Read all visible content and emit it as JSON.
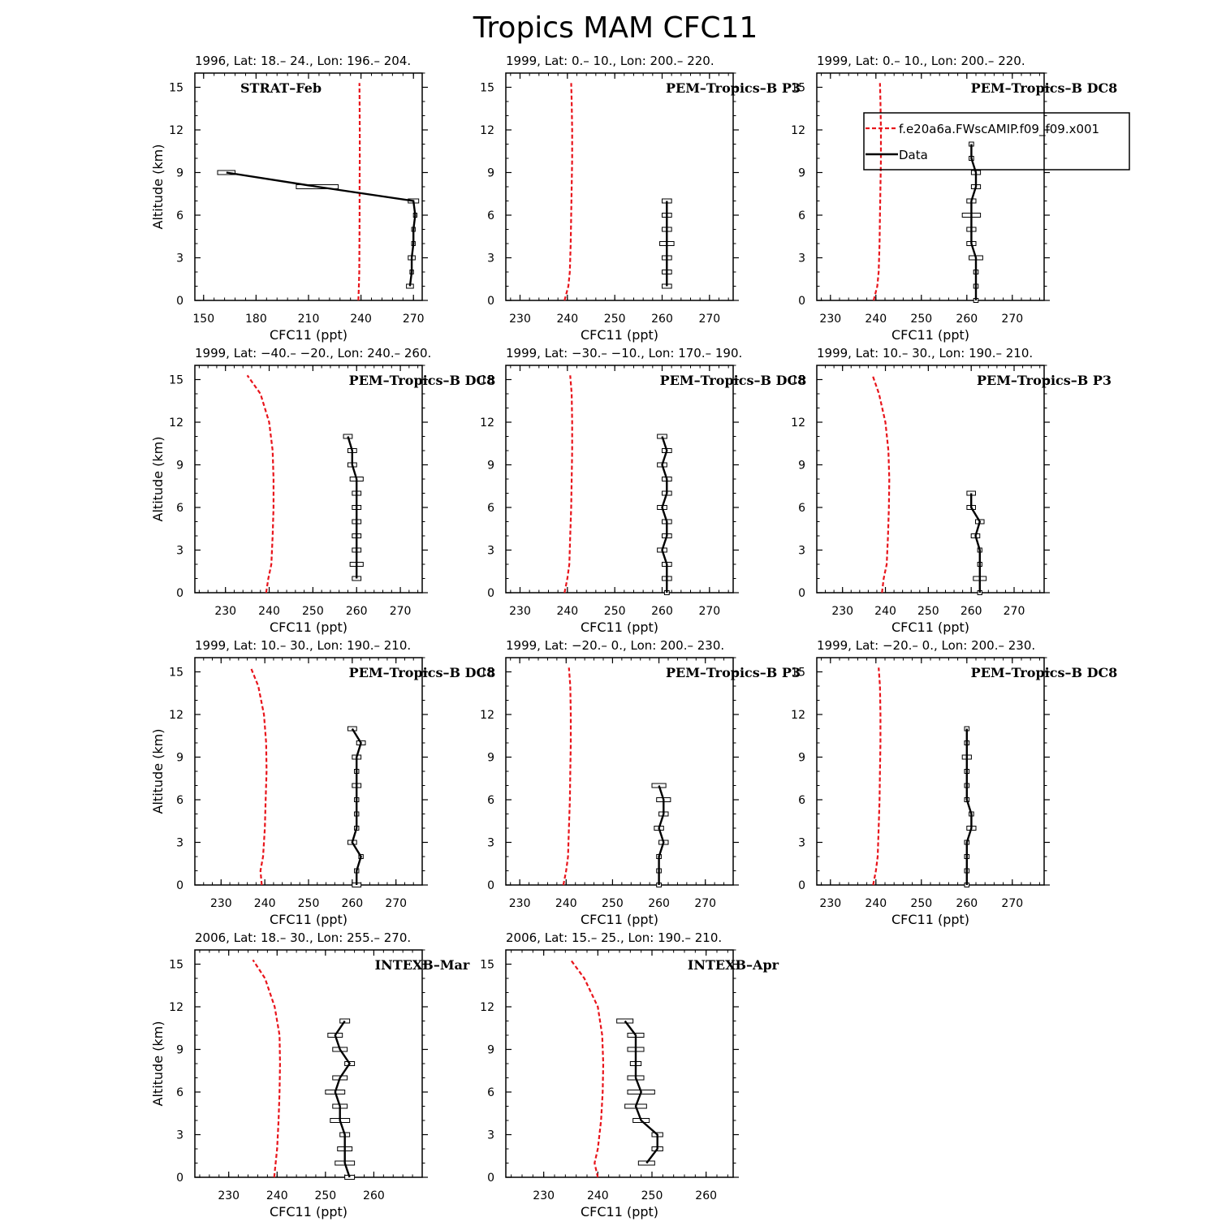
{
  "title": "Tropics MAM CFC11",
  "legend": {
    "model_label": "f.e20a6a.FWscAMIP.f09_f09.x001",
    "data_label": "Data"
  },
  "colors": {
    "model": "#e8141b",
    "data": "#000000"
  },
  "chart_data": [
    {
      "type": "line",
      "subtitle": "1996, Lat: 18.– 24., Lon: 196.– 204.",
      "campaign": "STRAT–Feb",
      "campaign_pos": "top-left",
      "xlabel": "CFC11 (ppt)",
      "ylabel": "Altitude (km)",
      "xlim": [
        145,
        275
      ],
      "ylim": [
        0,
        16
      ],
      "xticks": [
        150,
        180,
        210,
        240,
        270
      ],
      "yticks": [
        0,
        3,
        6,
        9,
        12,
        15
      ],
      "model": {
        "x": [
          238.5,
          238.8,
          239.0,
          239.1,
          239.2,
          239.2,
          239.3,
          239.3,
          239.2,
          239.1
        ],
        "y": [
          0,
          1,
          2,
          4,
          6,
          8,
          10,
          12,
          14,
          15.3
        ]
      },
      "data": {
        "alt": [
          1,
          2,
          3,
          4,
          5,
          6,
          7,
          8,
          9
        ],
        "mean": [
          268,
          269,
          269,
          270,
          270,
          271,
          270,
          215,
          163
        ],
        "err": [
          2,
          1,
          2,
          1,
          1,
          1,
          3,
          12,
          5
        ]
      }
    },
    {
      "type": "line",
      "subtitle": "1999, Lat: 0.– 10., Lon: 200.– 220.",
      "campaign": "PEM–Tropics–B P3",
      "campaign_pos": "top-right",
      "xlabel": "CFC11 (ppt)",
      "ylabel": "",
      "xlim": [
        227,
        275
      ],
      "ylim": [
        0,
        16
      ],
      "xticks": [
        230,
        240,
        250,
        260,
        270
      ],
      "yticks": [
        0,
        3,
        6,
        9,
        12,
        15
      ],
      "model": {
        "x": [
          239.4,
          240.2,
          240.5,
          240.7,
          240.8,
          240.9,
          241.0,
          241.0,
          240.9,
          240.8
        ],
        "y": [
          0,
          1,
          2,
          4,
          6,
          8,
          10,
          12,
          14,
          15.3
        ]
      },
      "data": {
        "alt": [
          1,
          2,
          3,
          4,
          5,
          6,
          7
        ],
        "mean": [
          261,
          261,
          261,
          261,
          261,
          261,
          261
        ],
        "err": [
          1,
          1,
          1,
          1.5,
          1,
          1,
          1
        ]
      }
    },
    {
      "type": "line",
      "subtitle": "1999, Lat: 0.– 10., Lon: 200.– 220.",
      "campaign": "PEM–Tropics–B DC8",
      "campaign_pos": "top-right",
      "xlabel": "CFC11 (ppt)",
      "ylabel": "",
      "xlim": [
        227,
        277
      ],
      "ylim": [
        0,
        16
      ],
      "xticks": [
        230,
        240,
        250,
        260,
        270
      ],
      "yticks": [
        0,
        3,
        6,
        9,
        12,
        15
      ],
      "model": {
        "x": [
          239.5,
          240.3,
          240.6,
          240.8,
          240.9,
          241.0,
          241.1,
          241.1,
          241.0,
          240.9
        ],
        "y": [
          0,
          1,
          2,
          4,
          6,
          8,
          10,
          12,
          14,
          15.3
        ]
      },
      "data": {
        "alt": [
          0,
          1,
          2,
          3,
          4,
          5,
          6,
          7,
          8,
          9,
          10,
          11
        ],
        "mean": [
          262,
          262,
          262,
          262,
          261,
          261,
          261,
          261,
          262,
          262,
          261,
          261
        ],
        "err": [
          0.5,
          0.5,
          0.5,
          1.5,
          1,
          1,
          2,
          1,
          1,
          1,
          0.5,
          0.5
        ]
      }
    },
    {
      "type": "line",
      "subtitle": "1999, Lat: −40.– −20., Lon: 240.– 260.",
      "campaign": "PEM–Tropics–B DC8",
      "campaign_pos": "top-right",
      "xlabel": "CFC11 (ppt)",
      "ylabel": "Altitude (km)",
      "xlim": [
        223,
        275
      ],
      "ylim": [
        0,
        16
      ],
      "xticks": [
        230,
        240,
        250,
        260,
        270
      ],
      "yticks": [
        0,
        3,
        6,
        9,
        12,
        15
      ],
      "model": {
        "x": [
          239.3,
          239.8,
          240.5,
          240.8,
          241.0,
          241.0,
          240.8,
          240.0,
          238.0,
          235.0
        ],
        "y": [
          0,
          1,
          2,
          4,
          6,
          8,
          10,
          12,
          14,
          15.3
        ]
      },
      "data": {
        "alt": [
          1,
          2,
          3,
          4,
          5,
          6,
          7,
          8,
          9,
          10,
          11
        ],
        "mean": [
          260,
          260,
          260,
          260,
          260,
          260,
          260,
          260,
          259,
          259,
          258
        ],
        "err": [
          1,
          1.5,
          1,
          1,
          1,
          1,
          1,
          1.5,
          1,
          1,
          1
        ]
      }
    },
    {
      "type": "line",
      "subtitle": "1999, Lat: −30.– −10., Lon: 170.– 190.",
      "campaign": "PEM–Tropics–B DC8",
      "campaign_pos": "top-right",
      "xlabel": "CFC11 (ppt)",
      "ylabel": "",
      "xlim": [
        227,
        275
      ],
      "ylim": [
        0,
        16
      ],
      "xticks": [
        230,
        240,
        250,
        260,
        270
      ],
      "yticks": [
        0,
        3,
        6,
        9,
        12,
        15
      ],
      "model": {
        "x": [
          239.4,
          240.0,
          240.4,
          240.6,
          240.8,
          240.9,
          241.0,
          241.0,
          240.9,
          240.6
        ],
        "y": [
          0,
          1,
          2,
          4,
          6,
          8,
          10,
          12,
          14,
          15.3
        ]
      },
      "data": {
        "alt": [
          0,
          1,
          2,
          3,
          4,
          5,
          6,
          7,
          8,
          9,
          10,
          11
        ],
        "mean": [
          261,
          261,
          261,
          260,
          261,
          261,
          260,
          261,
          261,
          260,
          261,
          260
        ],
        "err": [
          0.5,
          1,
          1,
          1,
          1,
          1,
          1,
          1,
          1,
          1,
          1,
          1
        ]
      }
    },
    {
      "type": "line",
      "subtitle": "1999, Lat: 10.– 30., Lon: 190.– 210.",
      "campaign": "PEM–Tropics–B P3",
      "campaign_pos": "top-right",
      "xlabel": "CFC11 (ppt)",
      "ylabel": "",
      "xlim": [
        224,
        277
      ],
      "ylim": [
        0,
        16
      ],
      "xticks": [
        230,
        240,
        250,
        260,
        270
      ],
      "yticks": [
        0,
        3,
        6,
        9,
        12,
        15
      ],
      "model": {
        "x": [
          239.2,
          239.6,
          240.3,
          240.6,
          240.8,
          240.9,
          240.7,
          240.0,
          238.5,
          237.0
        ],
        "y": [
          0,
          1,
          2,
          4,
          6,
          8,
          10,
          12,
          14,
          15.3
        ]
      },
      "data": {
        "alt": [
          0,
          1,
          2,
          3,
          4,
          5,
          6,
          7
        ],
        "mean": [
          262,
          262,
          262,
          262,
          261,
          262,
          260,
          260
        ],
        "err": [
          0.5,
          1.5,
          0.5,
          0.5,
          1,
          1,
          1,
          1
        ]
      }
    },
    {
      "type": "line",
      "subtitle": "1999, Lat: 10.– 30., Lon: 190.– 210.",
      "campaign": "PEM–Tropics–B DC8",
      "campaign_pos": "top-right",
      "xlabel": "CFC11 (ppt)",
      "ylabel": "Altitude (km)",
      "xlim": [
        224,
        276
      ],
      "ylim": [
        0,
        16
      ],
      "xticks": [
        230,
        240,
        250,
        260,
        270
      ],
      "yticks": [
        0,
        3,
        6,
        9,
        12,
        15
      ],
      "model": {
        "x": [
          239.3,
          239.0,
          239.6,
          240.0,
          240.2,
          240.4,
          240.3,
          239.8,
          238.5,
          236.8
        ],
        "y": [
          0,
          1,
          2,
          4,
          6,
          8,
          10,
          12,
          14,
          15.3
        ]
      },
      "data": {
        "alt": [
          0,
          1,
          2,
          3,
          4,
          5,
          6,
          7,
          8,
          9,
          10,
          11
        ],
        "mean": [
          261,
          261,
          262,
          260,
          261,
          261,
          261,
          261,
          261,
          261,
          262,
          260
        ],
        "err": [
          1,
          0.5,
          0.5,
          1,
          0.5,
          0.5,
          0.5,
          1,
          0.5,
          1,
          1,
          1
        ]
      }
    },
    {
      "type": "line",
      "subtitle": "1999, Lat: −20.– 0., Lon: 200.– 230.",
      "campaign": "PEM–Tropics–B P3",
      "campaign_pos": "top-right",
      "xlabel": "CFC11 (ppt)",
      "ylabel": "",
      "xlim": [
        227,
        276
      ],
      "ylim": [
        0,
        16
      ],
      "xticks": [
        230,
        240,
        250,
        260,
        270
      ],
      "yticks": [
        0,
        3,
        6,
        9,
        12,
        15
      ],
      "model": {
        "x": [
          239.4,
          240.0,
          240.4,
          240.6,
          240.8,
          240.9,
          241.0,
          241.0,
          240.9,
          240.6
        ],
        "y": [
          0,
          1,
          2,
          4,
          6,
          8,
          10,
          12,
          14,
          15.3
        ]
      },
      "data": {
        "alt": [
          0,
          1,
          2,
          3,
          4,
          5,
          6,
          7
        ],
        "mean": [
          260,
          260,
          260,
          261,
          260,
          261,
          261,
          260
        ],
        "err": [
          0.5,
          0.5,
          0.5,
          1,
          1,
          1,
          1.5,
          1.5
        ]
      }
    },
    {
      "type": "line",
      "subtitle": "1999, Lat: −20.– 0., Lon: 200.– 230.",
      "campaign": "PEM–Tropics–B DC8",
      "campaign_pos": "top-right",
      "xlabel": "CFC11 (ppt)",
      "ylabel": "",
      "xlim": [
        227,
        277
      ],
      "ylim": [
        0,
        16
      ],
      "xticks": [
        230,
        240,
        250,
        260,
        270
      ],
      "yticks": [
        0,
        3,
        6,
        9,
        12,
        15
      ],
      "model": {
        "x": [
          239.4,
          240.0,
          240.4,
          240.6,
          240.8,
          240.9,
          241.0,
          241.0,
          240.9,
          240.6
        ],
        "y": [
          0,
          1,
          2,
          4,
          6,
          8,
          10,
          12,
          14,
          15.3
        ]
      },
      "data": {
        "alt": [
          0,
          1,
          2,
          3,
          4,
          5,
          6,
          7,
          8,
          9,
          10,
          11
        ],
        "mean": [
          260,
          260,
          260,
          260,
          261,
          261,
          260,
          260,
          260,
          260,
          260,
          260
        ],
        "err": [
          0.5,
          0.5,
          0.5,
          0.5,
          1,
          0.5,
          0.5,
          0.5,
          0.5,
          1,
          0.5,
          0.5
        ]
      }
    },
    {
      "type": "line",
      "subtitle": "2006, Lat: 18.– 30., Lon: 255.– 270.",
      "campaign": "INTEXB–Mar",
      "campaign_pos": "top-right",
      "xlabel": "CFC11 (ppt)",
      "ylabel": "Altitude (km)",
      "xlim": [
        223,
        270
      ],
      "ylim": [
        0,
        16
      ],
      "xticks": [
        230,
        240,
        250,
        260
      ],
      "yticks": [
        0,
        3,
        6,
        9,
        12,
        15
      ],
      "model": {
        "x": [
          239.4,
          239.7,
          240.0,
          240.3,
          240.5,
          240.6,
          240.5,
          239.5,
          237.5,
          235.0
        ],
        "y": [
          0,
          1,
          2,
          4,
          6,
          8,
          10,
          12,
          14,
          15.3
        ]
      },
      "data": {
        "alt": [
          0,
          1,
          2,
          3,
          4,
          5,
          6,
          7,
          8,
          9,
          10,
          11
        ],
        "mean": [
          255,
          254,
          254,
          254,
          253,
          253,
          252,
          253,
          255,
          253,
          252,
          254
        ],
        "err": [
          1,
          2,
          1.5,
          1,
          2,
          1.5,
          2,
          1.5,
          1,
          1.5,
          1.5,
          1
        ]
      }
    },
    {
      "type": "line",
      "subtitle": "2006, Lat: 15.– 25., Lon: 190.– 210.",
      "campaign": "INTEXB–Apr",
      "campaign_pos": "top-right",
      "xlabel": "CFC11 (ppt)",
      "ylabel": "",
      "xlim": [
        223,
        265
      ],
      "ylim": [
        0,
        16
      ],
      "xticks": [
        230,
        240,
        250,
        260
      ],
      "yticks": [
        0,
        3,
        6,
        9,
        12,
        15
      ],
      "model": {
        "x": [
          240.0,
          239.4,
          240.0,
          240.6,
          240.9,
          241.0,
          240.8,
          240.0,
          237.5,
          235.0
        ],
        "y": [
          0,
          1,
          2,
          4,
          6,
          8,
          10,
          12,
          14,
          15.3
        ]
      },
      "data": {
        "alt": [
          1,
          2,
          3,
          4,
          5,
          6,
          7,
          8,
          9,
          10,
          11
        ],
        "mean": [
          249,
          251,
          251,
          248,
          247,
          248,
          247,
          247,
          247,
          247,
          245
        ],
        "err": [
          1.5,
          1,
          1,
          1.5,
          2,
          2.5,
          1.5,
          1,
          1.5,
          1.5,
          1.5
        ]
      }
    }
  ]
}
